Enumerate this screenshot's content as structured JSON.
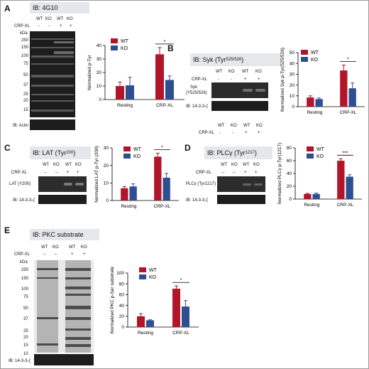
{
  "colors": {
    "wt": "#b0152a",
    "ko": "#2d4f92",
    "header_bg": "#e6e7ea"
  },
  "panels": {
    "A": {
      "label": "A",
      "blot_title": "IB: 4G10",
      "lanes": [
        "WT",
        "KO",
        "WT",
        "KO"
      ],
      "crp_label": "CRP-XL",
      "crp_marks": [
        "-",
        "-",
        "+",
        "+"
      ],
      "kda_label": "kDa",
      "markers": [
        "250",
        "150",
        "100",
        "75",
        "50",
        "37",
        "25",
        "20",
        "15"
      ],
      "loading": "IB: Actin"
    },
    "B": {
      "label": "B",
      "blot_title": "IB: Syk (Tyr",
      "blot_title_sup": "525/526",
      "blot_title_end": ")",
      "lanes": [
        "WT",
        "KO",
        "WT",
        "KO"
      ],
      "crp_label": "CRP-XL",
      "crp_marks": [
        "-",
        "-",
        "+",
        "+"
      ],
      "band_label_1": "Syk",
      "band_label_2": "(Y525/526)",
      "loading": "IB: 14-3-3-ζ",
      "lanes_bottom": [
        "WT",
        "KO",
        "WT",
        "KO"
      ],
      "crp_marks_bottom": [
        "-",
        "-",
        "+",
        "+"
      ]
    },
    "C": {
      "label": "C",
      "blot_title": "IB: LAT (Tyr",
      "blot_title_sup": "200",
      "blot_title_end": ")",
      "lanes": [
        "WT",
        "KO",
        "WT",
        "KO"
      ],
      "crp_label": "CRP-XL",
      "crp_marks": [
        "–",
        "–",
        "+",
        "+"
      ],
      "band_label": "LAT (Y200)",
      "loading": "IB: 14-3-3-ζ"
    },
    "D": {
      "label": "D",
      "blot_title": "IB: PLCγ (Tyr",
      "blot_title_sup": "1217",
      "blot_title_end": ")",
      "lanes": [
        "WT",
        "KO",
        "WT",
        "KO"
      ],
      "crp_label": "CRP-XL",
      "crp_marks": [
        "–",
        "–",
        "+",
        "+"
      ],
      "band_label": "PLCγ (Tyr1217)",
      "loading": "IB: 14-3-3-ζ"
    },
    "E": {
      "label": "E",
      "blot_title": "IB: PKC substrate",
      "lanes": [
        "WT",
        "KO",
        "WT",
        "KO"
      ],
      "crp_label": "CRP-XL",
      "crp_marks": [
        "–",
        "–",
        "+",
        "+"
      ],
      "kda_label": "kDa",
      "markers": [
        "250",
        "150",
        "100",
        "75",
        "50",
        "37",
        "25",
        "20",
        "15",
        "10"
      ],
      "loading": "IB: 14-3-3-ζ"
    }
  },
  "chart_data": [
    {
      "id": "A",
      "type": "bar",
      "categories": [
        "Resting",
        "CRP-XL"
      ],
      "ylabel": "Normalized p-Tyr",
      "ylim": [
        0,
        40
      ],
      "yticks": [
        "0",
        "10",
        "20",
        "30",
        "40"
      ],
      "significance": "*",
      "legend": "top-left",
      "series": [
        {
          "name": "WT",
          "values": [
            10,
            33.5
          ],
          "errors": [
            3,
            5
          ]
        },
        {
          "name": "KO",
          "values": [
            10.5,
            14.5
          ],
          "errors": [
            6,
            3
          ]
        }
      ]
    },
    {
      "id": "B",
      "type": "bar",
      "categories": [
        "Resting",
        "CRP-XL"
      ],
      "ylabel": "Normalized Syk p-Tyr(525/526)",
      "ylim": [
        0,
        50
      ],
      "yticks": [
        "0",
        "10",
        "20",
        "30",
        "40",
        "50"
      ],
      "significance": "*",
      "legend": "top-left",
      "series": [
        {
          "name": "WT",
          "values": [
            8.5,
            33.5
          ],
          "errors": [
            1.5,
            5
          ]
        },
        {
          "name": "KO",
          "values": [
            7,
            17
          ],
          "errors": [
            1,
            5
          ]
        }
      ]
    },
    {
      "id": "C",
      "type": "bar",
      "categories": [
        "Resting",
        "CRP-XL"
      ],
      "ylabel": "Normalized LAT p-Tyr (200)",
      "ylim": [
        0,
        30
      ],
      "yticks": [
        "0",
        "10",
        "20",
        "30"
      ],
      "significance": "*",
      "legend": "top-left",
      "series": [
        {
          "name": "WT",
          "values": [
            7,
            25
          ],
          "errors": [
            1,
            2
          ]
        },
        {
          "name": "KO",
          "values": [
            8,
            13
          ],
          "errors": [
            1.5,
            2.5
          ]
        }
      ]
    },
    {
      "id": "D",
      "type": "bar",
      "categories": [
        "Resting",
        "CRP-XL"
      ],
      "ylabel": "Normalized PLCγ p-Tyr(1217)",
      "ylim": [
        0,
        80
      ],
      "yticks": [
        "0",
        "20",
        "40",
        "60",
        "80"
      ],
      "significance": "***",
      "legend": "top-left",
      "series": [
        {
          "name": "WT",
          "values": [
            8,
            60
          ],
          "errors": [
            1,
            3
          ]
        },
        {
          "name": "KO",
          "values": [
            8,
            35
          ],
          "errors": [
            1.5,
            3
          ]
        }
      ]
    },
    {
      "id": "E",
      "type": "bar",
      "categories": [
        "Resting",
        "CRP-XL"
      ],
      "ylabel": "Normalized PKC p-Ser substrate",
      "ylim": [
        0,
        100
      ],
      "yticks": [
        "0",
        "20",
        "40",
        "60",
        "80",
        "100"
      ],
      "significance": "*",
      "legend": "top-left",
      "series": [
        {
          "name": "WT",
          "values": [
            20,
            71
          ],
          "errors": [
            5,
            5
          ]
        },
        {
          "name": "KO",
          "values": [
            12.5,
            38
          ],
          "errors": [
            1,
            11
          ]
        }
      ]
    }
  ]
}
